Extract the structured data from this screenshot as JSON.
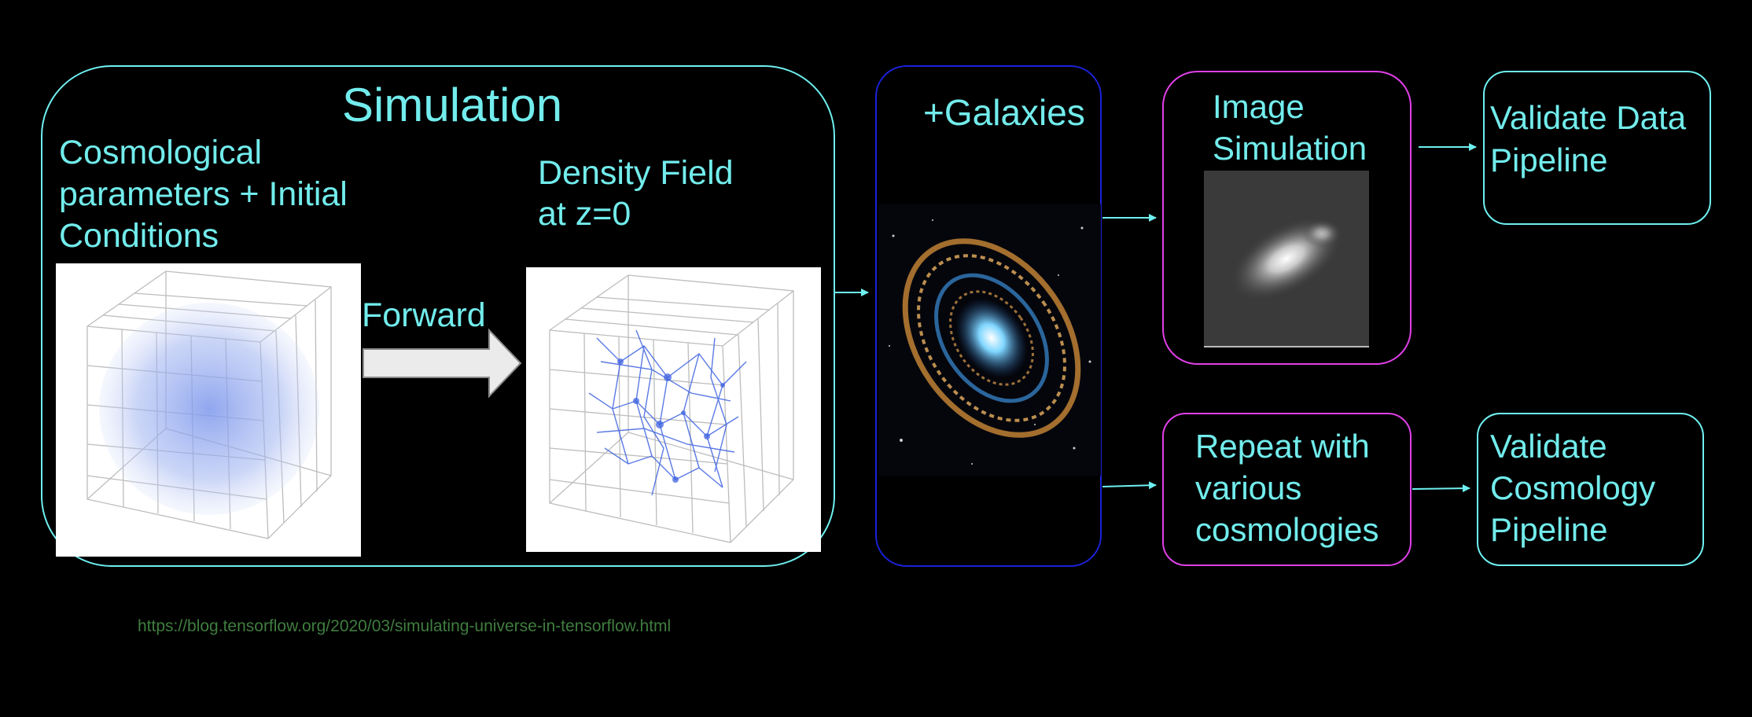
{
  "simulation": {
    "title": "Simulation",
    "initial_label": "Cosmological\nparameters + Initial\nConditions",
    "forward_label": "Forward",
    "density_label": "Density Field\nat z=0"
  },
  "galaxies": {
    "label": "+Galaxies"
  },
  "image_sim": {
    "label": "Image\nSimulation"
  },
  "repeat": {
    "label": "Repeat with\nvarious\ncosmologies"
  },
  "validate_data": {
    "label": "Validate Data\nPipeline"
  },
  "validate_cosmo": {
    "label": "Validate\nCosmology\nPipeline"
  },
  "footer": {
    "url": "https://blog.tensorflow.org/2020/03/simulating-universe-in-tensorflow.html"
  },
  "colors": {
    "text": "#72ecec",
    "simulation_border": "#6ff0f0",
    "galaxies_border": "#1a22d8",
    "image_border": "#e040e8",
    "validate_border": "#6ff0f0",
    "cube_blob": "#4a6ee8"
  }
}
